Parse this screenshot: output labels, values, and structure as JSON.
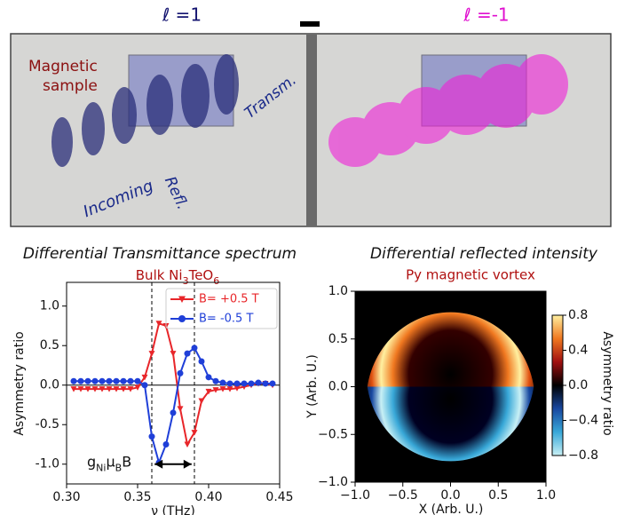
{
  "illustration": {
    "left_label": "ℓ =1",
    "right_label": "ℓ =-1",
    "sample_label": [
      "Magnetic",
      "sample"
    ],
    "transmitted": "Transm.",
    "incoming": "Incoming",
    "reflected": "Refl."
  },
  "chart_data": [
    {
      "type": "line",
      "title": "Differential Transmittance spectrum",
      "subtitle_parts": [
        "Bulk Ni",
        "3",
        "TeO",
        "6"
      ],
      "x_label": "ν (THz)",
      "y_label": "Asymmetry ratio",
      "x": [
        0.305,
        0.31,
        0.315,
        0.32,
        0.325,
        0.33,
        0.335,
        0.34,
        0.345,
        0.35,
        0.355,
        0.36,
        0.365,
        0.37,
        0.375,
        0.38,
        0.385,
        0.39,
        0.395,
        0.4,
        0.405,
        0.41,
        0.415,
        0.42,
        0.425,
        0.43,
        0.435,
        0.44,
        0.445
      ],
      "series": [
        {
          "name": "B= +0.5 T",
          "color": "#e8262a",
          "marker": "v",
          "values": [
            -0.05,
            -0.05,
            -0.05,
            -0.05,
            -0.05,
            -0.05,
            -0.05,
            -0.05,
            -0.05,
            -0.03,
            0.1,
            0.4,
            0.78,
            0.75,
            0.4,
            -0.3,
            -0.75,
            -0.6,
            -0.2,
            -0.08,
            -0.06,
            -0.05,
            -0.05,
            -0.04,
            -0.02,
            0.0,
            0.02,
            0.02,
            0.0
          ]
        },
        {
          "name": "B= -0.5 T",
          "color": "#1f3fd8",
          "marker": "o",
          "values": [
            0.05,
            0.05,
            0.05,
            0.05,
            0.05,
            0.05,
            0.05,
            0.05,
            0.05,
            0.05,
            0.0,
            -0.65,
            -0.98,
            -0.75,
            -0.35,
            0.15,
            0.4,
            0.47,
            0.3,
            0.1,
            0.05,
            0.03,
            0.02,
            0.02,
            0.02,
            0.02,
            0.03,
            0.02,
            0.02
          ]
        }
      ],
      "xlim": [
        0.3,
        0.45
      ],
      "ylim": [
        -1.25,
        1.3
      ],
      "xticks": [
        {
          "value": 0.3,
          "label": "0.30"
        },
        0.35,
        {
          "value": 0.4,
          "label": "0.40"
        },
        0.45
      ],
      "yticks": [
        {
          "value": 1,
          "label": "1.0"
        },
        0.5,
        {
          "value": 0,
          "label": "0.0"
        },
        {
          "value": -0.5,
          "label": "-0.5"
        },
        {
          "value": -1,
          "label": "-1.0"
        }
      ],
      "vlines": [
        0.36,
        0.39
      ],
      "hline": 0,
      "annotation": {
        "parts": [
          "g",
          "Ni",
          "μ",
          "B",
          "B"
        ],
        "x": [
          0.362,
          0.388
        ],
        "y": -1
      },
      "legend": "upper right"
    },
    {
      "type": "heatmap",
      "title": "Differential reflected intensity",
      "subtitle": "Py magnetic vortex",
      "x_label": "X (Arb. U.)",
      "y_label": "Y (Arb. U.)",
      "colorbar_label": "Asymmetry ratio",
      "xlim": [
        -1,
        1
      ],
      "ylim": [
        -1,
        1
      ],
      "clim": [
        -0.8,
        0.8
      ],
      "colormap": [
        "#c8f0f5",
        "#38a8d8",
        "#1848a0",
        "#000000",
        "#a01010",
        "#f07820",
        "#fff0a0"
      ],
      "xticks": [
        {
          "value": -1,
          "label": "−1.0"
        },
        {
          "value": -0.5,
          "label": "−0.5"
        },
        {
          "value": 0,
          "label": "0.0"
        },
        0.5,
        {
          "value": 1,
          "label": "1.0"
        }
      ],
      "yticks": [
        {
          "value": 1,
          "label": "1.0"
        },
        0.5,
        {
          "value": 0,
          "label": "0.0"
        },
        {
          "value": -0.5,
          "label": "−0.5"
        },
        {
          "value": -1,
          "label": "−1.0"
        }
      ],
      "cticks": [
        0.8,
        0.4,
        {
          "value": 0,
          "label": "0.0"
        },
        {
          "value": -0.4,
          "label": "−0.4"
        },
        {
          "value": -0.8,
          "label": "−0.8"
        }
      ]
    }
  ]
}
